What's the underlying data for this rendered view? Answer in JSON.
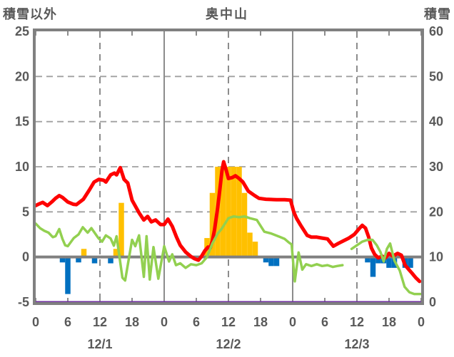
{
  "header": {
    "left_axis_title": "積雪以外",
    "title": "奥中山",
    "right_axis_title": "積雪"
  },
  "chart_data": {
    "type": "line+bar combo, dual axis",
    "hours_span": 72,
    "x_hour_ticks": [
      0,
      6,
      12,
      18,
      24,
      30,
      36,
      42,
      48,
      54,
      60,
      66,
      72
    ],
    "x_hour_tick_labels": [
      "0",
      "6",
      "12",
      "18",
      "0",
      "6",
      "12",
      "18",
      "0",
      "6",
      "12",
      "18",
      "0"
    ],
    "date_labels": [
      "12/1",
      "12/2",
      "12/3"
    ],
    "left_axis": {
      "title": "積雪以外",
      "min": -5,
      "max": 25,
      "ticks": [
        25,
        20,
        15,
        10,
        5,
        0,
        -5
      ]
    },
    "right_axis": {
      "title": "積雪",
      "min": 0,
      "max": 60,
      "ticks": [
        60,
        50,
        40,
        30,
        20,
        10,
        0
      ]
    },
    "grid": {
      "h_dash_levels_left": [
        20,
        15,
        10,
        5
      ],
      "v_solid_hours": [
        24,
        48
      ],
      "v_dash_hours": [
        12,
        36,
        60
      ],
      "zero_line_left": 0
    },
    "colors": {
      "red_line": "#fe0000",
      "green_line": "#92d050",
      "orange_bars": "#ffc000",
      "blue_bars": "#0070c0",
      "purple_line": "#7030a0",
      "axis_gray": "#808080",
      "grid_gray": "#a0a0a0",
      "text_gray": "#595959"
    },
    "series": [
      {
        "id": "orange-bars",
        "type": "bar",
        "axis": "left",
        "color": "#ffc000",
        "bars": [
          [
            9,
            0.9
          ],
          [
            15,
            0.9
          ],
          [
            16,
            6.0
          ],
          [
            32,
            2.1
          ],
          [
            33,
            7.1
          ],
          [
            34,
            10
          ],
          [
            35,
            10
          ],
          [
            36,
            10
          ],
          [
            37,
            10
          ],
          [
            38,
            10
          ],
          [
            39,
            7.1
          ],
          [
            40,
            2.7
          ],
          [
            41,
            1.7
          ]
        ]
      },
      {
        "id": "blue-bars",
        "type": "bar",
        "axis": "left",
        "color": "#0070c0",
        "bars": [
          [
            5,
            -0.6
          ],
          [
            6,
            -4.1
          ],
          [
            8,
            -0.6
          ],
          [
            11,
            -0.7
          ],
          [
            14,
            -0.7
          ],
          [
            43,
            -0.6
          ],
          [
            44,
            -1.0
          ],
          [
            45,
            -1.0
          ],
          [
            62,
            -0.6
          ],
          [
            63,
            -2.2
          ],
          [
            64,
            -0.7
          ],
          [
            65,
            -0.7
          ],
          [
            66,
            -1.2
          ],
          [
            67,
            -1.2
          ],
          [
            69,
            -1.2
          ],
          [
            70,
            -1.2
          ]
        ]
      },
      {
        "id": "red-line",
        "type": "line",
        "axis": "left",
        "color": "#fe0000",
        "width": 5,
        "segments": [
          [
            [
              0,
              5.7
            ],
            [
              0.7,
              5.9
            ],
            [
              1.3,
              6.05
            ],
            [
              2.2,
              5.7
            ],
            [
              3,
              6.1
            ],
            [
              3.7,
              6.5
            ],
            [
              4.4,
              6.8
            ],
            [
              5,
              6.6
            ],
            [
              6,
              6.1
            ],
            [
              7,
              5.85
            ],
            [
              7.6,
              5.8
            ],
            [
              8.9,
              6.4
            ],
            [
              10,
              7.4
            ],
            [
              10.9,
              8.3
            ],
            [
              11.8,
              8.6
            ],
            [
              12.7,
              8.5
            ],
            [
              13.1,
              8.3
            ],
            [
              14,
              9.1
            ],
            [
              14.7,
              9.3
            ],
            [
              15.1,
              9.1
            ],
            [
              15.8,
              9.9
            ],
            [
              16.5,
              8.6
            ],
            [
              17.2,
              8.2
            ],
            [
              18,
              6.3
            ],
            [
              19.3,
              4.9
            ],
            [
              20.2,
              4.1
            ],
            [
              20.9,
              4.5
            ],
            [
              21.6,
              3.9
            ],
            [
              22.4,
              4.1
            ],
            [
              23.3,
              3.6
            ],
            [
              24,
              3.6
            ],
            [
              24.7,
              4.2
            ],
            [
              25.5,
              3.4
            ],
            [
              26.3,
              2.2
            ],
            [
              27,
              1.3
            ],
            [
              28,
              0.55
            ],
            [
              29,
              0.05
            ],
            [
              29.7,
              -0.2
            ],
            [
              30.4,
              -0.35
            ],
            [
              31,
              0.1
            ],
            [
              31.6,
              0.7
            ],
            [
              32.2,
              1.1
            ],
            [
              32.6,
              1.0
            ],
            [
              33,
              1.8
            ],
            [
              33.4,
              3.0
            ],
            [
              34,
              5.5
            ],
            [
              34.4,
              7.5
            ],
            [
              34.8,
              9.6
            ],
            [
              35.1,
              10.55
            ],
            [
              35.6,
              9.6
            ],
            [
              36,
              8.7
            ],
            [
              36.7,
              8.8
            ],
            [
              37.3,
              9.0
            ],
            [
              38,
              8.7
            ],
            [
              38.7,
              8.3
            ],
            [
              39.7,
              7.3
            ],
            [
              40.9,
              6.8
            ],
            [
              41.7,
              6.5
            ],
            [
              43,
              6.4
            ],
            [
              45,
              6.35
            ],
            [
              46.5,
              6.35
            ],
            [
              47.6,
              6.3
            ],
            [
              48.2,
              5.0
            ],
            [
              48.7,
              4.3
            ],
            [
              49.5,
              3.5
            ],
            [
              50.7,
              2.4
            ],
            [
              51.5,
              2.2
            ],
            [
              52.5,
              2.2
            ],
            [
              53.5,
              2.1
            ],
            [
              54.5,
              2.0
            ],
            [
              55.6,
              1.2
            ],
            [
              56.5,
              1.5
            ],
            [
              57.5,
              1.8
            ],
            [
              58.5,
              2.1
            ],
            [
              59.5,
              2.5
            ],
            [
              60.5,
              3.2
            ],
            [
              61,
              3.5
            ],
            [
              61.6,
              3.2
            ],
            [
              62.2,
              2.2
            ],
            [
              62.7,
              1.0
            ],
            [
              63.3,
              0.3
            ],
            [
              64,
              -0.1
            ],
            [
              64.7,
              0.1
            ],
            [
              65.3,
              -0.1
            ],
            [
              66,
              0.4
            ],
            [
              66.7,
              0.1
            ],
            [
              67.6,
              0.4
            ],
            [
              68.3,
              0.2
            ],
            [
              69,
              -0.9
            ],
            [
              69.7,
              -1.4
            ],
            [
              70.3,
              -1.8
            ],
            [
              71,
              -2.3
            ],
            [
              71.7,
              -2.7
            ]
          ]
        ]
      },
      {
        "id": "green-line",
        "type": "line",
        "axis": "right",
        "color": "#92d050",
        "width": 3.5,
        "segments": [
          [
            [
              0,
              17.4
            ],
            [
              0.8,
              16.4
            ],
            [
              1.6,
              15.8
            ],
            [
              2.4,
              15.4
            ],
            [
              3.2,
              14.4
            ],
            [
              3.7,
              14.6
            ],
            [
              4.4,
              16.2
            ],
            [
              5,
              14.0
            ],
            [
              5.5,
              12.6
            ],
            [
              6,
              12.4
            ],
            [
              7.1,
              14.2
            ],
            [
              8,
              15.0
            ],
            [
              8.8,
              16.6
            ],
            [
              9.7,
              15.4
            ],
            [
              10.4,
              16.4
            ],
            [
              11.7,
              14.2
            ],
            [
              12.4,
              13.4
            ],
            [
              13.1,
              14.8
            ],
            [
              14,
              14.1
            ],
            [
              14.6,
              12.5
            ],
            [
              15.1,
              14.6
            ],
            [
              16.2,
              5.4
            ],
            [
              16.7,
              4.8
            ],
            [
              18,
              13.8
            ],
            [
              18.6,
              12.4
            ],
            [
              19.3,
              14.8
            ],
            [
              20.2,
              5.6
            ],
            [
              20.7,
              14.6
            ],
            [
              21.3,
              5.0
            ],
            [
              22,
              12.2
            ],
            [
              22.9,
              5.2
            ],
            [
              24,
              12.4
            ],
            [
              24.9,
              9.0
            ],
            [
              25.5,
              10.6
            ],
            [
              26.2,
              8.2
            ],
            [
              27,
              8.6
            ],
            [
              28,
              7.6
            ],
            [
              29,
              8.4
            ],
            [
              30,
              8.2
            ],
            [
              31,
              8.6
            ],
            [
              32,
              10.0
            ],
            [
              33,
              13.0
            ],
            [
              34,
              15.2
            ],
            [
              34.7,
              16.2
            ],
            [
              36,
              18.6
            ],
            [
              37,
              19.0
            ],
            [
              38,
              18.8
            ],
            [
              39,
              19.0
            ],
            [
              40,
              18.6
            ],
            [
              41.3,
              18.2
            ],
            [
              42.7,
              15.6
            ],
            [
              44,
              15.2
            ],
            [
              45.7,
              14.4
            ],
            [
              46.5,
              14.0
            ],
            [
              47.3,
              13.2
            ],
            [
              47.8,
              12.8
            ],
            [
              48.4,
              4.6
            ],
            [
              49.1,
              11.0
            ],
            [
              49.8,
              7.2
            ],
            [
              50.5,
              8.4
            ],
            [
              51.5,
              8.0
            ],
            [
              52.5,
              8.4
            ],
            [
              53.5,
              8.0
            ],
            [
              54.5,
              8.2
            ],
            [
              55.5,
              7.8
            ],
            [
              56.3,
              8.0
            ],
            [
              57.3,
              8.2
            ]
          ],
          [
            [
              59,
              11.8
            ],
            [
              60,
              12.6
            ],
            [
              61,
              13.4
            ],
            [
              62,
              13.8
            ],
            [
              62.9,
              13.8
            ],
            [
              63.7,
              12.6
            ],
            [
              64.4,
              11.1
            ],
            [
              65,
              9.0
            ],
            [
              65.6,
              11.8
            ],
            [
              66.2,
              13.0
            ],
            [
              67,
              9.2
            ],
            [
              68,
              7.0
            ],
            [
              68.9,
              3.4
            ],
            [
              69.8,
              2.2
            ],
            [
              70.7,
              1.8
            ],
            [
              72,
              1.8
            ]
          ]
        ]
      },
      {
        "id": "purple-line",
        "type": "line",
        "axis": "right",
        "color": "#7030a0",
        "width": 3,
        "segments": [
          [
            [
              0,
              0
            ],
            [
              72,
              0
            ]
          ]
        ]
      }
    ]
  }
}
